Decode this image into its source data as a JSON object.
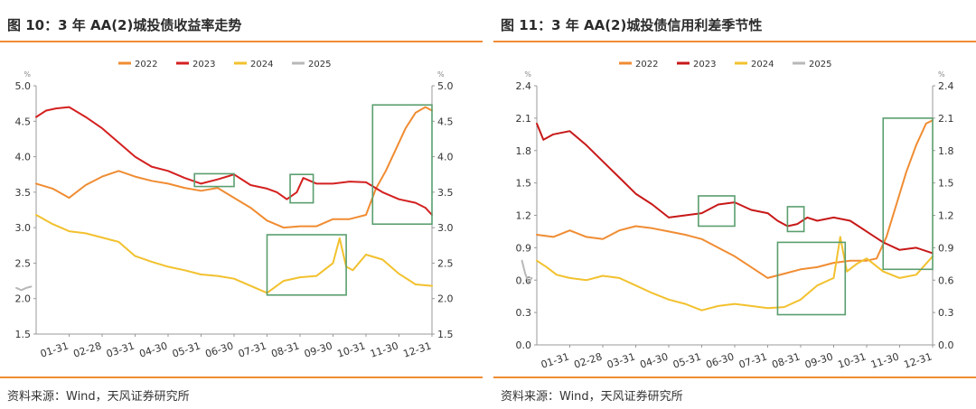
{
  "figures": [
    {
      "title": "图 10：3 年 AA(2)城投债收益率走势",
      "source": "资料来源：Wind，天风证券研究所"
    },
    {
      "title": "图 11：3 年 AA(2)城投债信用利差季节性",
      "source": "资料来源：Wind，天风证券研究所"
    }
  ],
  "chart_data": [
    {
      "type": "line",
      "title": "",
      "unit_left": "%",
      "unit_right": "%",
      "x_tick_labels": [
        "01-31",
        "02-28",
        "03-31",
        "04-30",
        "05-31",
        "06-30",
        "07-31",
        "08-31",
        "09-30",
        "10-31",
        "11-30",
        "12-31"
      ],
      "x_domain_months": [
        0,
        12
      ],
      "ylim": [
        1.5,
        5.0
      ],
      "yticks": [
        "1.5",
        "2.0",
        "2.5",
        "3.0",
        "3.5",
        "4.0",
        "4.5",
        "5.0"
      ],
      "y_tick_values": [
        1.5,
        2.0,
        2.5,
        3.0,
        3.5,
        4.0,
        4.5,
        5.0
      ],
      "grid": false,
      "legend_position": "top-center",
      "series": [
        {
          "name": "2022",
          "color": "#f08c32",
          "x": [
            0,
            0.5,
            1,
            1.5,
            2,
            2.5,
            3,
            3.5,
            4,
            4.5,
            5,
            5.5,
            6,
            6.5,
            7,
            7.5,
            8,
            8.5,
            9,
            9.5,
            10,
            10.3,
            10.6,
            10.9,
            11.2,
            11.5,
            11.8,
            12
          ],
          "y": [
            3.62,
            3.55,
            3.42,
            3.6,
            3.72,
            3.8,
            3.72,
            3.66,
            3.62,
            3.56,
            3.52,
            3.56,
            3.42,
            3.28,
            3.1,
            3.0,
            3.02,
            3.02,
            3.12,
            3.12,
            3.18,
            3.55,
            3.8,
            4.1,
            4.4,
            4.62,
            4.7,
            4.65
          ]
        },
        {
          "name": "2023",
          "color": "#d42020",
          "x": [
            0,
            0.3,
            0.6,
            1,
            1.5,
            2,
            2.5,
            3,
            3.5,
            4,
            4.5,
            5,
            5.5,
            6,
            6.5,
            7,
            7.3,
            7.6,
            7.9,
            8.1,
            8.5,
            9,
            9.5,
            10,
            10.5,
            11,
            11.5,
            11.8,
            12
          ],
          "y": [
            4.56,
            4.65,
            4.68,
            4.7,
            4.56,
            4.4,
            4.2,
            4.0,
            3.86,
            3.8,
            3.7,
            3.62,
            3.68,
            3.75,
            3.6,
            3.55,
            3.5,
            3.4,
            3.5,
            3.7,
            3.62,
            3.62,
            3.65,
            3.64,
            3.5,
            3.4,
            3.35,
            3.28,
            3.18
          ]
        },
        {
          "name": "2024",
          "color": "#f2c12e",
          "x": [
            0,
            0.5,
            1,
            1.5,
            2,
            2.5,
            3,
            3.5,
            4,
            4.5,
            5,
            5.5,
            6,
            6.5,
            7,
            7.5,
            8,
            8.5,
            9,
            9.2,
            9.4,
            9.6,
            10,
            10.5,
            11,
            11.5,
            12
          ],
          "y": [
            3.18,
            3.05,
            2.95,
            2.92,
            2.86,
            2.8,
            2.6,
            2.52,
            2.45,
            2.4,
            2.34,
            2.32,
            2.28,
            2.18,
            2.08,
            2.25,
            2.3,
            2.32,
            2.5,
            2.85,
            2.45,
            2.4,
            2.62,
            2.55,
            2.35,
            2.2,
            2.18
          ]
        },
        {
          "name": "2025",
          "color": "#b8b8b8",
          "x": [
            -0.6,
            -0.45,
            -0.3,
            -0.15
          ],
          "y": [
            2.15,
            2.12,
            2.15,
            2.17
          ]
        }
      ],
      "annotations": [
        {
          "type": "box",
          "x": [
            4.8,
            6.0
          ],
          "y": [
            3.58,
            3.76
          ]
        },
        {
          "type": "box",
          "x": [
            7.7,
            8.4
          ],
          "y": [
            3.35,
            3.75
          ]
        },
        {
          "type": "box",
          "x": [
            7.0,
            9.4
          ],
          "y": [
            2.05,
            2.9
          ]
        },
        {
          "type": "box",
          "x": [
            10.2,
            12.0
          ],
          "y": [
            3.05,
            4.73
          ]
        }
      ]
    },
    {
      "type": "line",
      "title": "",
      "unit_left": "%",
      "unit_right": "%",
      "x_tick_labels": [
        "01-31",
        "02-28",
        "03-31",
        "04-30",
        "05-31",
        "06-30",
        "07-31",
        "08-31",
        "09-30",
        "10-31",
        "11-30",
        "12-31"
      ],
      "x_domain_months": [
        0,
        12
      ],
      "ylim": [
        0.0,
        2.4
      ],
      "yticks": [
        "0.0",
        "0.3",
        "0.6",
        "0.9",
        "1.2",
        "1.5",
        "1.8",
        "2.1",
        "2.4"
      ],
      "y_tick_values": [
        0.0,
        0.3,
        0.6,
        0.9,
        1.2,
        1.5,
        1.8,
        2.1,
        2.4
      ],
      "grid": false,
      "legend_position": "top-center",
      "series": [
        {
          "name": "2022",
          "color": "#f08c32",
          "x": [
            0,
            0.5,
            1,
            1.5,
            2,
            2.5,
            3,
            3.5,
            4,
            4.5,
            5,
            5.5,
            6,
            6.5,
            7,
            7.5,
            8,
            8.5,
            9,
            9.5,
            10,
            10.3,
            10.6,
            10.9,
            11.2,
            11.5,
            11.8,
            12
          ],
          "y": [
            1.02,
            1.0,
            1.06,
            1.0,
            0.98,
            1.06,
            1.1,
            1.08,
            1.05,
            1.02,
            0.98,
            0.9,
            0.82,
            0.72,
            0.62,
            0.66,
            0.7,
            0.72,
            0.76,
            0.78,
            0.78,
            0.8,
            1.0,
            1.3,
            1.6,
            1.85,
            2.05,
            2.08
          ]
        },
        {
          "name": "2023",
          "color": "#c81818",
          "x": [
            0,
            0.2,
            0.5,
            1,
            1.5,
            2,
            2.5,
            3,
            3.5,
            4,
            4.5,
            5,
            5.5,
            6,
            6.5,
            7,
            7.3,
            7.6,
            7.9,
            8.2,
            8.5,
            9,
            9.5,
            10,
            10.5,
            11,
            11.5,
            12
          ],
          "y": [
            2.05,
            1.9,
            1.95,
            1.98,
            1.85,
            1.7,
            1.55,
            1.4,
            1.3,
            1.18,
            1.2,
            1.22,
            1.3,
            1.32,
            1.25,
            1.22,
            1.15,
            1.1,
            1.12,
            1.18,
            1.15,
            1.18,
            1.15,
            1.05,
            0.95,
            0.88,
            0.9,
            0.85
          ]
        },
        {
          "name": "2024",
          "color": "#f2c12e",
          "x": [
            0,
            0.3,
            0.6,
            1,
            1.5,
            2,
            2.5,
            3,
            3.5,
            4,
            4.5,
            5,
            5.5,
            6,
            6.5,
            7,
            7.5,
            8,
            8.5,
            9,
            9.2,
            9.4,
            9.7,
            10,
            10.5,
            11,
            11.5,
            12
          ],
          "y": [
            0.78,
            0.72,
            0.65,
            0.62,
            0.6,
            0.64,
            0.62,
            0.55,
            0.48,
            0.42,
            0.38,
            0.32,
            0.36,
            0.38,
            0.36,
            0.34,
            0.35,
            0.42,
            0.55,
            0.62,
            1.0,
            0.68,
            0.75,
            0.8,
            0.68,
            0.62,
            0.65,
            0.82
          ]
        },
        {
          "name": "2025",
          "color": "#b8b8b8",
          "x": [
            -0.45,
            -0.35,
            -0.25,
            -0.15
          ],
          "y": [
            0.78,
            0.66,
            0.58,
            0.62
          ]
        }
      ],
      "annotations": [
        {
          "type": "box",
          "x": [
            4.9,
            6.0
          ],
          "y": [
            1.1,
            1.38
          ]
        },
        {
          "type": "box",
          "x": [
            7.6,
            8.1
          ],
          "y": [
            1.05,
            1.28
          ]
        },
        {
          "type": "box",
          "x": [
            7.3,
            9.35
          ],
          "y": [
            0.28,
            0.95
          ]
        },
        {
          "type": "box",
          "x": [
            10.5,
            12.0
          ],
          "y": [
            0.7,
            2.1
          ]
        }
      ]
    }
  ]
}
